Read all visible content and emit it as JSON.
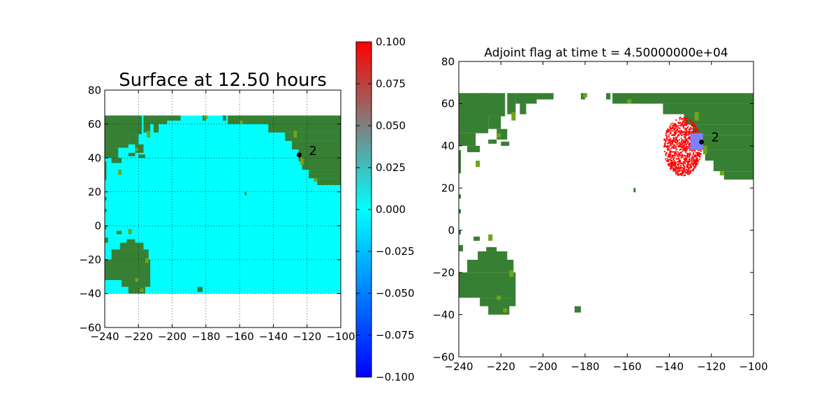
{
  "colors": {
    "ocean": "#00ffff",
    "land": "#377f33",
    "land_highlight": "#6fa51b",
    "flag": "#ff0000",
    "gauge_box": "#8080ff",
    "colorbar_top": "#ff0000",
    "colorbar_mid": "#00ffff",
    "colorbar_bottom": "#0000ff"
  },
  "chart_data": [
    {
      "type": "heatmap",
      "title": "Surface at 12.50 hours",
      "xlim": [
        -240,
        -100
      ],
      "ylim": [
        -60,
        80
      ],
      "xticks": [
        -240,
        -220,
        -200,
        -180,
        -160,
        -140,
        -120,
        -100
      ],
      "yticks": [
        -60,
        -40,
        -20,
        0,
        20,
        40,
        60,
        80
      ],
      "xtick_labels": [
        "−240",
        "−220",
        "−200",
        "−180",
        "−160",
        "−140",
        "−120",
        "−100"
      ],
      "ytick_labels": [
        "−60",
        "−40",
        "−20",
        "0",
        "20",
        "40",
        "60",
        "80"
      ],
      "grid": true,
      "domain": {
        "x": [
          -240,
          -100
        ],
        "y": [
          -40,
          65
        ]
      },
      "gauge": {
        "label": "2",
        "x": -124.7,
        "y": 41.8
      },
      "colorbar": {
        "range": [
          -0.1,
          0.1
        ],
        "ticks": [
          0.1,
          0.075,
          0.05,
          0.025,
          0.0,
          -0.025,
          -0.05,
          -0.075,
          -0.1
        ],
        "tick_labels": [
          "0.100",
          "0.075",
          "0.050",
          "0.025",
          "0.000",
          "−0.025",
          "−0.050",
          "−0.075",
          "−0.100"
        ]
      }
    },
    {
      "type": "heatmap",
      "title": "Adjoint flag at time t = 4.50000000e+04",
      "xlim": [
        -240,
        -100
      ],
      "ylim": [
        -60,
        80
      ],
      "xticks": [
        -240,
        -220,
        -200,
        -180,
        -160,
        -140,
        -120,
        -100
      ],
      "yticks": [
        -60,
        -40,
        -20,
        0,
        20,
        40,
        60,
        80
      ],
      "xtick_labels": [
        "−240",
        "−220",
        "−200",
        "−180",
        "−160",
        "−140",
        "−120",
        "−100"
      ],
      "ytick_labels": [
        "−60",
        "−40",
        "−20",
        "0",
        "20",
        "40",
        "60",
        "80"
      ],
      "grid": false,
      "gauge": {
        "label": "2",
        "x": -124.7,
        "y": 41.8
      },
      "flag_region": {
        "center": [
          -134,
          40
        ],
        "radius_x": 9,
        "radius_y": 14
      },
      "gauge_box": {
        "x": [
          -130,
          -124
        ],
        "y": [
          38,
          46
        ]
      }
    }
  ]
}
